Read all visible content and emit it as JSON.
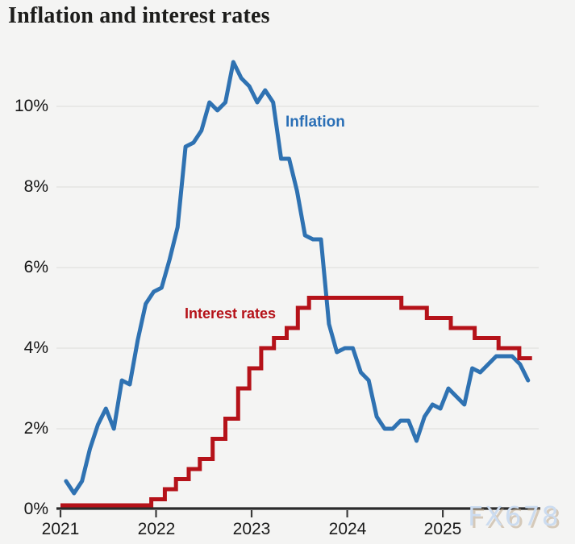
{
  "title": "Inflation and interest rates",
  "watermark": "FX678",
  "colors": {
    "inflation": "#2f72b2",
    "interest": "#b51219",
    "background": "#f4f4f3",
    "grid": "#e3e3e1",
    "axis": "#2b2b2b",
    "tick": "#3c3c3c",
    "text": "#1a1a1a",
    "watermark": "#ccdcf0"
  },
  "chart_data": {
    "type": "line",
    "title": "Inflation and interest rates",
    "x_start": "2021-01",
    "x_unit": "month",
    "ylim": [
      0,
      11.5
    ],
    "grid": "horizontal",
    "y_tick_values": [
      0,
      2,
      4,
      6,
      8,
      10
    ],
    "y_tick_labels": [
      "0%",
      "2%",
      "4%",
      "6%",
      "8%",
      "10%"
    ],
    "x_tick_years": [
      2021,
      2022,
      2023,
      2024,
      2025
    ],
    "x_tick_labels": [
      "2021",
      "2022",
      "2023",
      "2024",
      "2025"
    ],
    "series": [
      {
        "name": "Inflation",
        "color_key": "inflation",
        "kind": "monthly",
        "start_month_index": 0,
        "values": [
          0.7,
          0.4,
          0.7,
          1.5,
          2.1,
          2.5,
          2.0,
          3.2,
          3.1,
          4.2,
          5.1,
          5.4,
          5.5,
          6.2,
          7.0,
          9.0,
          9.1,
          9.4,
          10.1,
          9.9,
          10.1,
          11.1,
          10.7,
          10.5,
          10.1,
          10.4,
          10.1,
          8.7,
          8.7,
          7.9,
          6.8,
          6.7,
          6.7,
          4.6,
          3.9,
          4.0,
          4.0,
          3.4,
          3.2,
          2.3,
          2.0,
          2.0,
          2.2,
          2.2,
          1.7,
          2.3,
          2.6,
          2.5,
          3.0,
          2.8,
          2.6,
          3.5,
          3.4,
          3.6,
          3.8,
          3.8,
          3.8,
          3.6,
          3.2
        ]
      },
      {
        "name": "Interest rates",
        "color_key": "interest",
        "kind": "step",
        "changes": [
          [
            0,
            0.1
          ],
          [
            11.4,
            0.25
          ],
          [
            13.1,
            0.5
          ],
          [
            14.5,
            0.75
          ],
          [
            16.1,
            1.0
          ],
          [
            17.5,
            1.25
          ],
          [
            19.1,
            1.75
          ],
          [
            20.7,
            2.25
          ],
          [
            22.3,
            3.0
          ],
          [
            23.7,
            3.5
          ],
          [
            25.2,
            4.0
          ],
          [
            26.8,
            4.25
          ],
          [
            28.4,
            4.5
          ],
          [
            29.8,
            5.0
          ],
          [
            31.2,
            5.25
          ],
          [
            42.8,
            5.0
          ],
          [
            46.0,
            4.75
          ],
          [
            49.0,
            4.5
          ],
          [
            52.0,
            4.25
          ],
          [
            55.0,
            4.0
          ],
          [
            57.6,
            3.75
          ]
        ],
        "end_month_index": 59.2
      }
    ]
  }
}
